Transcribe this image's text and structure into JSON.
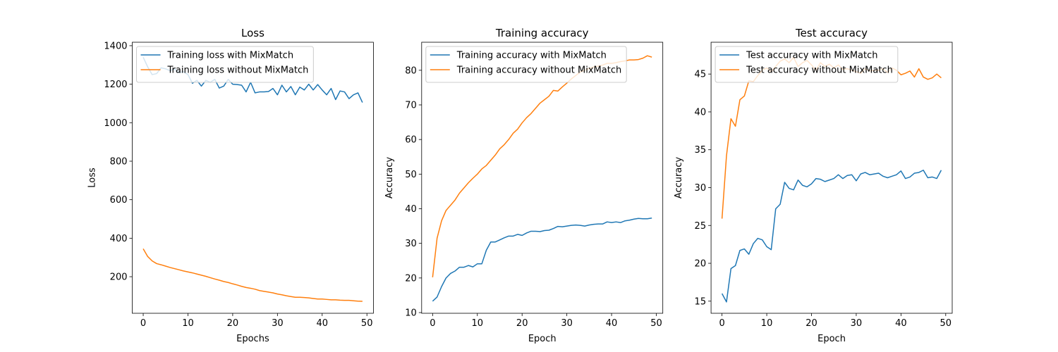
{
  "chart_data": [
    {
      "type": "line",
      "title": "Loss",
      "xlabel": "Epochs",
      "ylabel": "Loss",
      "x": [
        0,
        1,
        2,
        3,
        4,
        5,
        6,
        7,
        8,
        9,
        10,
        11,
        12,
        13,
        14,
        15,
        16,
        17,
        18,
        19,
        20,
        21,
        22,
        23,
        24,
        25,
        26,
        27,
        28,
        29,
        30,
        31,
        32,
        33,
        34,
        35,
        36,
        37,
        38,
        39,
        40,
        41,
        42,
        43,
        44,
        45,
        46,
        47,
        48,
        49
      ],
      "series": [
        {
          "name": "Training loss with MixMatch",
          "color": "#1f77b4",
          "values": [
            1340,
            1290,
            1250,
            1255,
            1285,
            1280,
            1270,
            1280,
            1260,
            1265,
            1250,
            1205,
            1220,
            1190,
            1220,
            1210,
            1225,
            1180,
            1190,
            1225,
            1200,
            1198,
            1195,
            1160,
            1210,
            1155,
            1160,
            1160,
            1162,
            1178,
            1145,
            1195,
            1160,
            1188,
            1145,
            1185,
            1170,
            1200,
            1170,
            1198,
            1170,
            1145,
            1178,
            1120,
            1165,
            1160,
            1125,
            1145,
            1155,
            1105
          ]
        },
        {
          "name": "Training loss without MixMatch",
          "color": "#ff7f0e",
          "values": [
            345,
            305,
            282,
            268,
            262,
            255,
            248,
            242,
            236,
            230,
            225,
            220,
            214,
            208,
            202,
            195,
            188,
            182,
            175,
            170,
            163,
            157,
            150,
            144,
            140,
            135,
            128,
            124,
            120,
            116,
            110,
            106,
            101,
            97,
            93,
            93,
            92,
            90,
            87,
            84,
            84,
            82,
            80,
            80,
            78,
            77,
            77,
            75,
            73,
            72
          ]
        }
      ],
      "xlim": [
        -2.45,
        51.45
      ],
      "xticks": [
        0,
        10,
        20,
        30,
        40,
        50
      ],
      "ylim": [
        10,
        1418
      ],
      "yticks": [
        200,
        400,
        600,
        800,
        1000,
        1200,
        1400
      ],
      "legend": "upper left"
    },
    {
      "type": "line",
      "title": "Training accuracy",
      "xlabel": "Epoch",
      "ylabel": "Accuracy",
      "x": [
        0,
        1,
        2,
        3,
        4,
        5,
        6,
        7,
        8,
        9,
        10,
        11,
        12,
        13,
        14,
        15,
        16,
        17,
        18,
        19,
        20,
        21,
        22,
        23,
        24,
        25,
        26,
        27,
        28,
        29,
        30,
        31,
        32,
        33,
        34,
        35,
        36,
        37,
        38,
        39,
        40,
        41,
        42,
        43,
        44,
        45,
        46,
        47,
        48,
        49
      ],
      "series": [
        {
          "name": "Training accuracy with MixMatch",
          "color": "#1f77b4",
          "values": [
            13.3,
            14.5,
            17.5,
            20,
            21.3,
            22,
            23.1,
            23.1,
            23.6,
            23.2,
            24.1,
            24.1,
            28,
            30.4,
            30.4,
            31,
            31.6,
            32.1,
            32.1,
            32.6,
            32.3,
            33,
            33.5,
            33.5,
            33.4,
            33.7,
            33.8,
            34.3,
            34.9,
            34.8,
            35,
            35.2,
            35.3,
            35.2,
            35,
            35.3,
            35.5,
            35.6,
            35.6,
            36.2,
            36,
            36.2,
            36,
            36.5,
            36.7,
            37,
            37.2,
            37.1,
            37.1,
            37.3
          ]
        },
        {
          "name": "Training accuracy without MixMatch",
          "color": "#ff7f0e",
          "values": [
            20.2,
            31.5,
            36.5,
            39.5,
            41,
            42.5,
            44.5,
            46,
            47.5,
            48.8,
            50,
            51.5,
            52.5,
            54,
            55.5,
            57.3,
            58.5,
            60,
            61.8,
            63,
            64.8,
            66.3,
            67.5,
            69,
            70.5,
            71.5,
            72.5,
            74.2,
            74,
            75.2,
            76.3,
            77.5,
            78.5,
            79.5,
            80,
            80.5,
            81,
            81.2,
            81.5,
            82,
            82,
            82.2,
            82.5,
            82.7,
            83,
            83,
            83.1,
            83.5,
            84.2,
            83.8
          ]
        }
      ],
      "xlim": [
        -2.45,
        51.45
      ],
      "xticks": [
        0,
        10,
        20,
        30,
        40,
        50
      ],
      "ylim": [
        9.8,
        88.1
      ],
      "yticks": [
        10,
        20,
        30,
        40,
        50,
        60,
        70,
        80
      ],
      "legend": "upper left"
    },
    {
      "type": "line",
      "title": "Test accuracy",
      "xlabel": "Epoch",
      "ylabel": "Accuracy",
      "x": [
        0,
        1,
        2,
        3,
        4,
        5,
        6,
        7,
        8,
        9,
        10,
        11,
        12,
        13,
        14,
        15,
        16,
        17,
        18,
        19,
        20,
        21,
        22,
        23,
        24,
        25,
        26,
        27,
        28,
        29,
        30,
        31,
        32,
        33,
        34,
        35,
        36,
        37,
        38,
        39,
        40,
        41,
        42,
        43,
        44,
        45,
        46,
        47,
        48,
        49
      ],
      "series": [
        {
          "name": "Test accuracy with MixMatch",
          "color": "#1f77b4",
          "values": [
            16,
            14.9,
            19.3,
            19.7,
            21.7,
            21.9,
            21.2,
            22.6,
            23.3,
            23.1,
            22.2,
            21.8,
            27.2,
            27.8,
            30.7,
            29.9,
            29.7,
            31,
            30.3,
            30.1,
            30.5,
            31.2,
            31.1,
            30.8,
            31,
            31.2,
            31.7,
            31.2,
            31.6,
            31.7,
            30.9,
            31.8,
            32,
            31.7,
            31.8,
            31.9,
            31.5,
            31.3,
            31.5,
            31.7,
            32.2,
            31.2,
            31.4,
            31.9,
            32,
            32.3,
            31.3,
            31.4,
            31.2,
            32.3
          ]
        },
        {
          "name": "Test accuracy without MixMatch",
          "color": "#ff7f0e",
          "values": [
            25.9,
            34.2,
            39.1,
            38.1,
            41.6,
            42.1,
            44.1,
            44,
            44.8,
            45.5,
            45.8,
            45.3,
            46,
            46.7,
            47,
            46.5,
            47.2,
            46,
            46.5,
            46.8,
            46.2,
            45.5,
            46.5,
            46,
            46.3,
            45.8,
            46.2,
            45.6,
            45.7,
            45.5,
            45.3,
            45.1,
            45.7,
            45.4,
            45.5,
            45.5,
            45.7,
            45.2,
            45.8,
            45.5,
            44.9,
            45.1,
            45.4,
            44.6,
            45.7,
            44.6,
            44.3,
            44.5,
            45,
            44.5
          ]
        }
      ],
      "xlim": [
        -2.45,
        51.45
      ],
      "xticks": [
        0,
        10,
        20,
        30,
        40,
        50
      ],
      "ylim": [
        13.4,
        49.2
      ],
      "yticks": [
        15,
        20,
        25,
        30,
        35,
        40,
        45
      ],
      "legend": "upper left"
    }
  ]
}
